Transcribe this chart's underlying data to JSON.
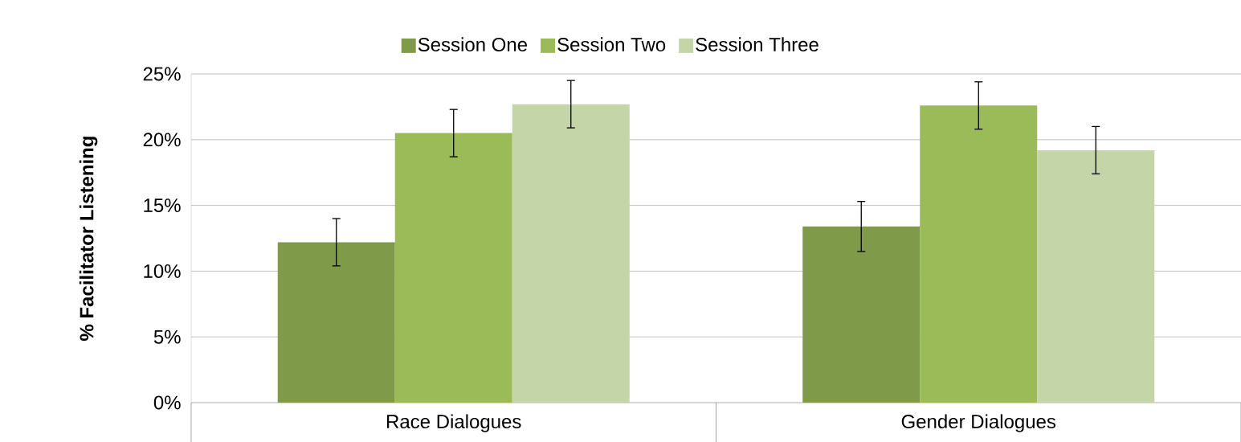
{
  "chart_data": {
    "type": "bar",
    "ylabel": "% Facilitator Listening",
    "categories": [
      "Race Dialogues",
      "Gender Dialogues"
    ],
    "series": [
      {
        "name": "Session One",
        "color": "#7f9a48",
        "values": [
          12.2,
          13.4
        ],
        "errors": [
          1.8,
          1.9
        ]
      },
      {
        "name": "Session Two",
        "color": "#9bbb59",
        "values": [
          20.5,
          22.6
        ],
        "errors": [
          1.8,
          1.8
        ]
      },
      {
        "name": "Session Three",
        "color": "#c4d5a8",
        "values": [
          22.7,
          19.2
        ],
        "errors": [
          1.8,
          1.8
        ]
      }
    ],
    "ylim": [
      0,
      25
    ],
    "yticks": [
      {
        "value": 0,
        "label": "0%"
      },
      {
        "value": 5,
        "label": "5%"
      },
      {
        "value": 10,
        "label": "10%"
      },
      {
        "value": 15,
        "label": "15%"
      },
      {
        "value": 20,
        "label": "20%"
      },
      {
        "value": 25,
        "label": "25%"
      }
    ],
    "grid": "y",
    "legend": "top"
  }
}
